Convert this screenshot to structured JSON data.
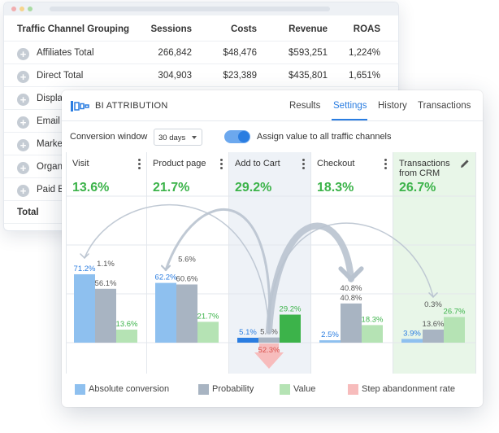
{
  "traffic_table": {
    "headers": [
      "Traffic Channel Grouping",
      "Sessions",
      "Costs",
      "Revenue",
      "ROAS"
    ],
    "rows": [
      {
        "name": "Affiliates Total",
        "sessions": "266,842",
        "costs": "$48,476",
        "revenue": "$593,251",
        "roas": "1,224%"
      },
      {
        "name": "Direct Total",
        "sessions": "304,903",
        "costs": "$23,389",
        "revenue": "$435,801",
        "roas": "1,651%"
      },
      {
        "name": "Display"
      },
      {
        "name": "Email T"
      },
      {
        "name": "Marke"
      },
      {
        "name": "Organi"
      },
      {
        "name": "Paid B"
      }
    ],
    "total_label": "Total"
  },
  "panel": {
    "title": "BI ATTRIBUTION",
    "tabs": [
      "Results",
      "Settings",
      "History",
      "Transactions"
    ],
    "active_tab": "Settings",
    "conversion_window_label": "Conversion window",
    "conversion_window_value": "30 days",
    "toggle_label": "Assign value to all traffic channels",
    "toggle_on": true
  },
  "chart_data": {
    "type": "bar",
    "categories": [
      "Visit",
      "Product page",
      "Add to Cart",
      "Checkout",
      "Transactions from CRM"
    ],
    "headline_values": [
      "13.6%",
      "21.7%",
      "29.2%",
      "18.3%",
      "26.7%"
    ],
    "series": [
      {
        "name": "Absolute conversion",
        "values": [
          71.2,
          62.2,
          5.1,
          2.5,
          3.9
        ],
        "color": "#8ec0ef"
      },
      {
        "name": "Probability",
        "values": [
          56.1,
          60.6,
          5.4,
          40.8,
          13.6
        ],
        "color": "#a8b4c2"
      },
      {
        "name": "Value",
        "values": [
          13.6,
          21.7,
          29.2,
          18.3,
          26.7
        ],
        "color": "#b5e3b4"
      },
      {
        "name": "Step abandonment rate",
        "values": [
          null,
          null,
          52.3,
          null,
          null
        ],
        "color": "#f7bcbc"
      }
    ],
    "probability_tops": [
      1.1,
      5.6,
      null,
      40.8,
      0.3
    ],
    "highlight_colors": {
      "add_to_cart": "#eef2f7",
      "transactions": "#e8f6e8",
      "active_value": "#3cb34a",
      "active_abs": "#2a7de1"
    },
    "flows": [
      {
        "from": "Add to Cart",
        "to": "Visit"
      },
      {
        "from": "Add to Cart",
        "to": "Product page"
      },
      {
        "from": "Add to Cart",
        "to": "Checkout"
      },
      {
        "from": "Add to Cart",
        "to": "Transactions from CRM"
      }
    ],
    "legend_position": "bottom"
  }
}
